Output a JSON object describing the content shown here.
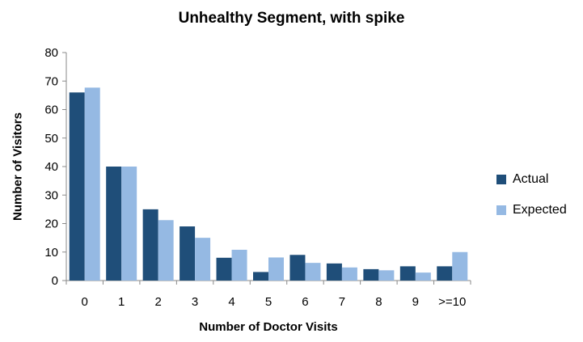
{
  "chart_data": {
    "type": "bar",
    "title": "Unhealthy Segment, with spike",
    "xlabel": "Number of Doctor Visits",
    "ylabel": "Number of Visitors",
    "categories": [
      "0",
      "1",
      "2",
      "3",
      "4",
      "5",
      "6",
      "7",
      "8",
      "9",
      ">=10"
    ],
    "series": [
      {
        "name": "Actual",
        "color": "#1f4e79",
        "values": [
          66,
          40,
          25,
          19,
          8,
          3,
          9,
          6,
          4,
          5,
          5
        ]
      },
      {
        "name": "Expected",
        "color": "#95b9e3",
        "values": [
          67.7,
          40,
          21.2,
          15,
          10.8,
          8.1,
          6.2,
          4.6,
          3.6,
          2.8,
          10
        ]
      }
    ],
    "ylim": [
      0,
      80
    ],
    "yticks": [
      0,
      10,
      20,
      30,
      40,
      50,
      60,
      70,
      80
    ],
    "grid": false,
    "legend_position": "right"
  }
}
